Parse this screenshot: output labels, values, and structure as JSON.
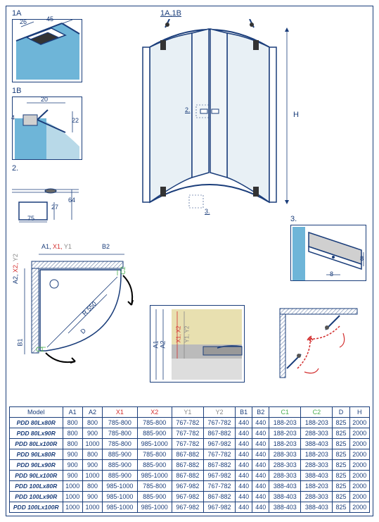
{
  "labels": {
    "d1a": "1A",
    "d1b": "1B",
    "d2": "2.",
    "d3": "3.",
    "top_ref": "1A,1B",
    "handle_ref": "2.",
    "bottom_ref": "3.",
    "h_dim": "H",
    "dim_26": "26",
    "dim_45": "45",
    "dim_20": "20",
    "dim_22": "22",
    "dim_4": "4",
    "dim_75": "75",
    "dim_27": "27",
    "dim_64": "64",
    "dim_8a": "8",
    "dim_8b": "8",
    "r550": "R 550",
    "a1": "A1,",
    "x1": "X1,",
    "y1": "Y1",
    "a2": "A2,",
    "x2": "X2,",
    "y2": "Y2",
    "b1": "B1",
    "b2": "B2",
    "c1": "C1",
    "c2": "C2",
    "d_dim": "D",
    "plan_a1": "A1",
    "plan_a2": "A2",
    "plan_x1": "X1",
    "plan_x2": "X2",
    "plan_y1": "Y1",
    "plan_y2": "Y2"
  },
  "table": {
    "headers": {
      "model": "Model",
      "a1": "A1",
      "a2": "A2",
      "x1": "X1",
      "x2": "X2",
      "y1": "Y1",
      "y2": "Y2",
      "b1": "B1",
      "b2": "B2",
      "c1": "C1",
      "c2": "C2",
      "d": "D",
      "h": "H"
    },
    "rows": [
      {
        "model": "PDD 80Lx80R",
        "a1": "800",
        "a2": "800",
        "x1": "785-800",
        "x2": "785-800",
        "y1": "767-782",
        "y2": "767-782",
        "b1": "440",
        "b2": "440",
        "c1": "188-203",
        "c2": "188-203",
        "d": "825",
        "h": "2000"
      },
      {
        "model": "PDD 80Lx90R",
        "a1": "800",
        "a2": "900",
        "x1": "785-800",
        "x2": "885-900",
        "y1": "767-782",
        "y2": "867-882",
        "b1": "440",
        "b2": "440",
        "c1": "188-203",
        "c2": "288-303",
        "d": "825",
        "h": "2000"
      },
      {
        "model": "PDD 80Lx100R",
        "a1": "800",
        "a2": "1000",
        "x1": "785-800",
        "x2": "985-1000",
        "y1": "767-782",
        "y2": "967-982",
        "b1": "440",
        "b2": "440",
        "c1": "188-203",
        "c2": "388-403",
        "d": "825",
        "h": "2000"
      },
      {
        "model": "PDD 90Lx80R",
        "a1": "900",
        "a2": "800",
        "x1": "885-900",
        "x2": "785-800",
        "y1": "867-882",
        "y2": "767-782",
        "b1": "440",
        "b2": "440",
        "c1": "288-303",
        "c2": "188-203",
        "d": "825",
        "h": "2000"
      },
      {
        "model": "PDD 90Lx90R",
        "a1": "900",
        "a2": "900",
        "x1": "885-900",
        "x2": "885-900",
        "y1": "867-882",
        "y2": "867-882",
        "b1": "440",
        "b2": "440",
        "c1": "288-303",
        "c2": "288-303",
        "d": "825",
        "h": "2000"
      },
      {
        "model": "PDD 90Lx100R",
        "a1": "900",
        "a2": "1000",
        "x1": "885-900",
        "x2": "985-1000",
        "y1": "867-882",
        "y2": "967-982",
        "b1": "440",
        "b2": "440",
        "c1": "288-303",
        "c2": "388-403",
        "d": "825",
        "h": "2000"
      },
      {
        "model": "PDD 100Lx80R",
        "a1": "1000",
        "a2": "800",
        "x1": "985-1000",
        "x2": "785-800",
        "y1": "967-982",
        "y2": "767-782",
        "b1": "440",
        "b2": "440",
        "c1": "388-403",
        "c2": "188-203",
        "d": "825",
        "h": "2000"
      },
      {
        "model": "PDD 100Lx90R",
        "a1": "1000",
        "a2": "900",
        "x1": "985-1000",
        "x2": "885-900",
        "y1": "967-982",
        "y2": "867-882",
        "b1": "440",
        "b2": "440",
        "c1": "388-403",
        "c2": "288-303",
        "d": "825",
        "h": "2000"
      },
      {
        "model": "PDD 100Lx100R",
        "a1": "1000",
        "a2": "1000",
        "x1": "985-1000",
        "x2": "985-1000",
        "y1": "967-982",
        "y2": "967-982",
        "b1": "440",
        "b2": "440",
        "c1": "388-403",
        "c2": "388-403",
        "d": "825",
        "h": "2000"
      }
    ]
  },
  "colors": {
    "blue": "#1a3d7a",
    "red": "#d32f2f",
    "grey": "#888888",
    "green": "#4caf50",
    "glass": "#6eb5d8",
    "glass_light": "#b8d9e8",
    "profile": "#d0d0d0",
    "floor_beige": "#e8e0b0"
  }
}
